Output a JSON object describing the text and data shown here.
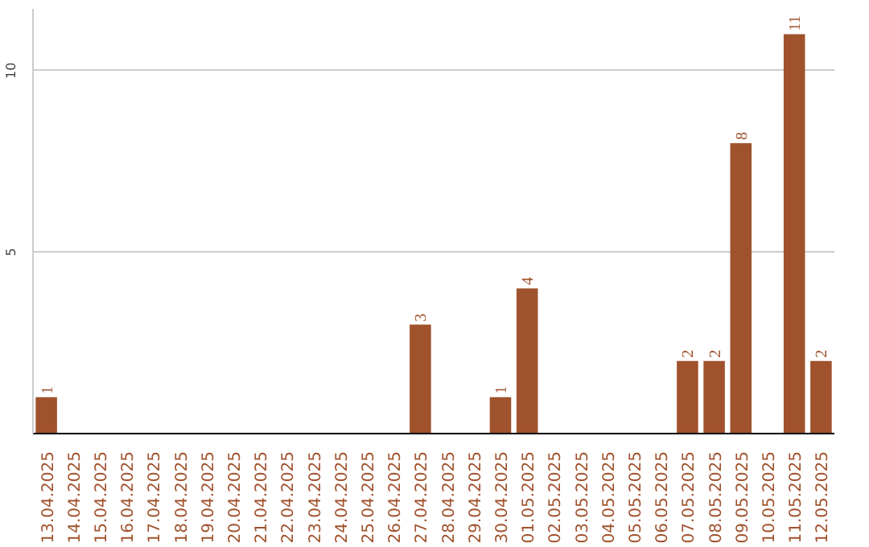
{
  "chart_data": {
    "type": "bar",
    "categories": [
      "13.04.2025",
      "14.04.2025",
      "15.04.2025",
      "16.04.2025",
      "17.04.2025",
      "18.04.2025",
      "19.04.2025",
      "20.04.2025",
      "21.04.2025",
      "22.04.2025",
      "23.04.2025",
      "24.04.2025",
      "25.04.2025",
      "26.04.2025",
      "27.04.2025",
      "28.04.2025",
      "29.04.2025",
      "30.04.2025",
      "01.05.2025",
      "02.05.2025",
      "03.05.2025",
      "04.05.2025",
      "05.05.2025",
      "06.05.2025",
      "07.05.2025",
      "08.05.2025",
      "09.05.2025",
      "10.05.2025",
      "11.05.2025",
      "12.05.2025"
    ],
    "values": [
      1,
      0,
      0,
      0,
      0,
      0,
      0,
      0,
      0,
      0,
      0,
      0,
      0,
      0,
      3,
      0,
      0,
      1,
      4,
      0,
      0,
      0,
      0,
      0,
      2,
      2,
      8,
      0,
      11,
      2
    ],
    "value_labels": [
      "1",
      null,
      null,
      null,
      null,
      null,
      null,
      null,
      null,
      null,
      null,
      null,
      null,
      null,
      "3",
      null,
      null,
      "1",
      "4",
      null,
      null,
      null,
      null,
      null,
      "2",
      "2",
      "8",
      null,
      "11",
      "2"
    ],
    "color": "#a0522d",
    "ylim": [
      0,
      11.7
    ],
    "yticks": [
      5,
      10
    ],
    "grid": "y"
  }
}
